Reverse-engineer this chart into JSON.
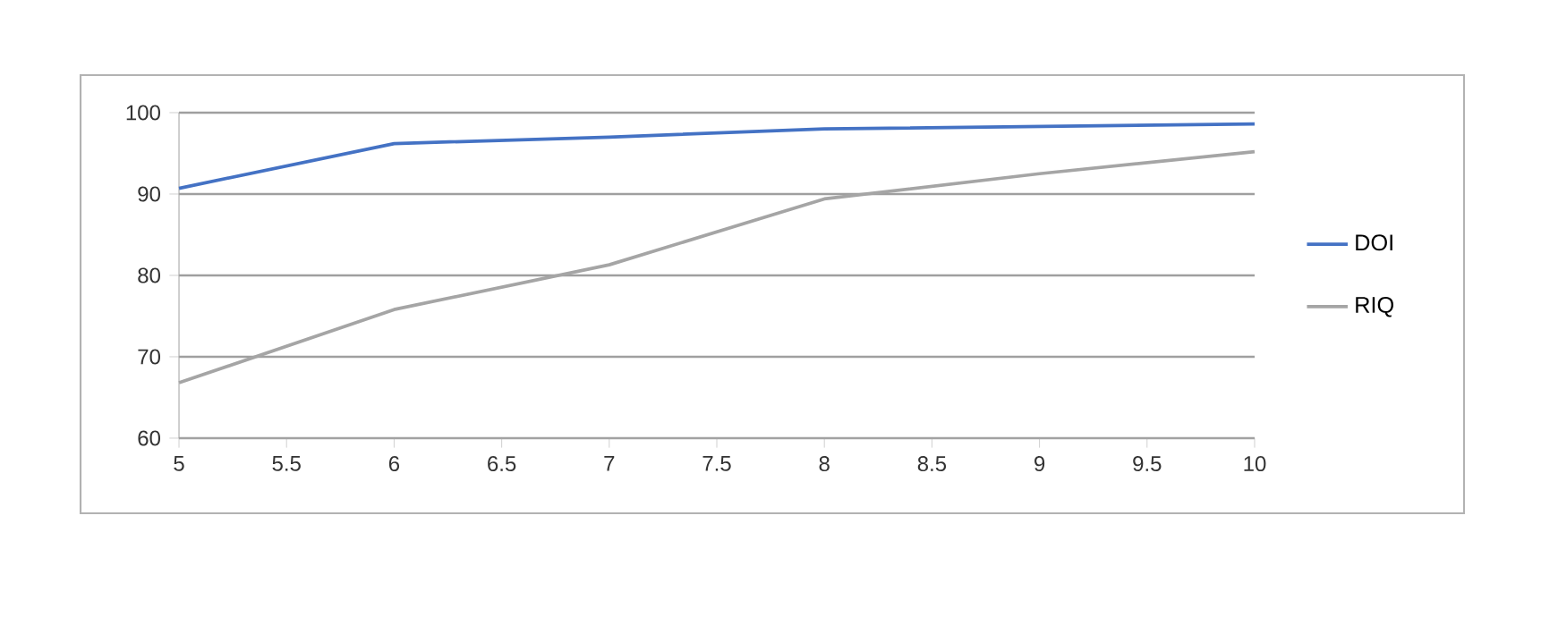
{
  "chart_data": {
    "type": "line",
    "x": [
      5,
      6,
      7,
      8,
      9,
      10
    ],
    "series": [
      {
        "name": "DOI",
        "color": "#4472c4",
        "values": [
          90.7,
          96.2,
          97,
          98,
          98.3,
          98.6
        ]
      },
      {
        "name": "RIQ",
        "color": "#a5a5a5",
        "values": [
          66.8,
          75.8,
          81.3,
          89.4,
          92.5,
          95.2
        ]
      }
    ],
    "xlim": [
      5,
      10
    ],
    "xticks": [
      5,
      5.5,
      6,
      6.5,
      7,
      7.5,
      8,
      8.5,
      9,
      9.5,
      10
    ],
    "ylim": [
      60,
      100
    ],
    "yticks": [
      60,
      70,
      80,
      90,
      100
    ],
    "grid": "y",
    "legend": "right",
    "marker": "none",
    "line_style": "solid"
  }
}
